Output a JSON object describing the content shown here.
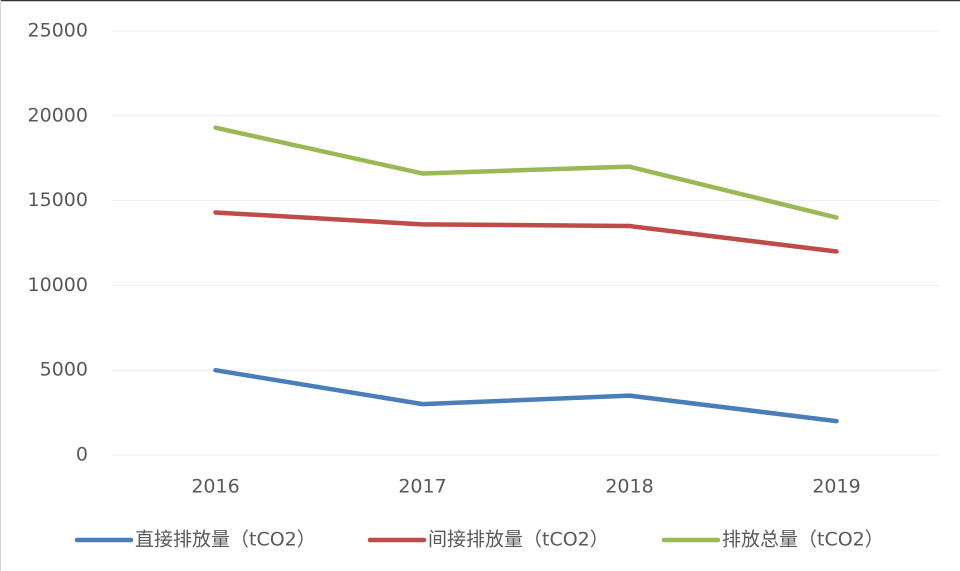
{
  "chart_data": {
    "type": "line",
    "categories": [
      "2016",
      "2017",
      "2018",
      "2019"
    ],
    "series": [
      {
        "name": "直接排放量（tCO2）",
        "color": "#4a7ebb",
        "values": [
          5000,
          3000,
          3500,
          2000
        ]
      },
      {
        "name": "间接排放量（tCO2）",
        "color": "#be4b48",
        "values": [
          14300,
          13600,
          13500,
          12000
        ]
      },
      {
        "name": "排放总量（tCO2）",
        "color": "#98b954",
        "values": [
          19300,
          16600,
          17000,
          14000
        ]
      }
    ],
    "ylim": [
      0,
      25000
    ],
    "yticks": [
      0,
      5000,
      10000,
      15000,
      20000,
      25000
    ],
    "grid": true,
    "legend": "bottom"
  }
}
